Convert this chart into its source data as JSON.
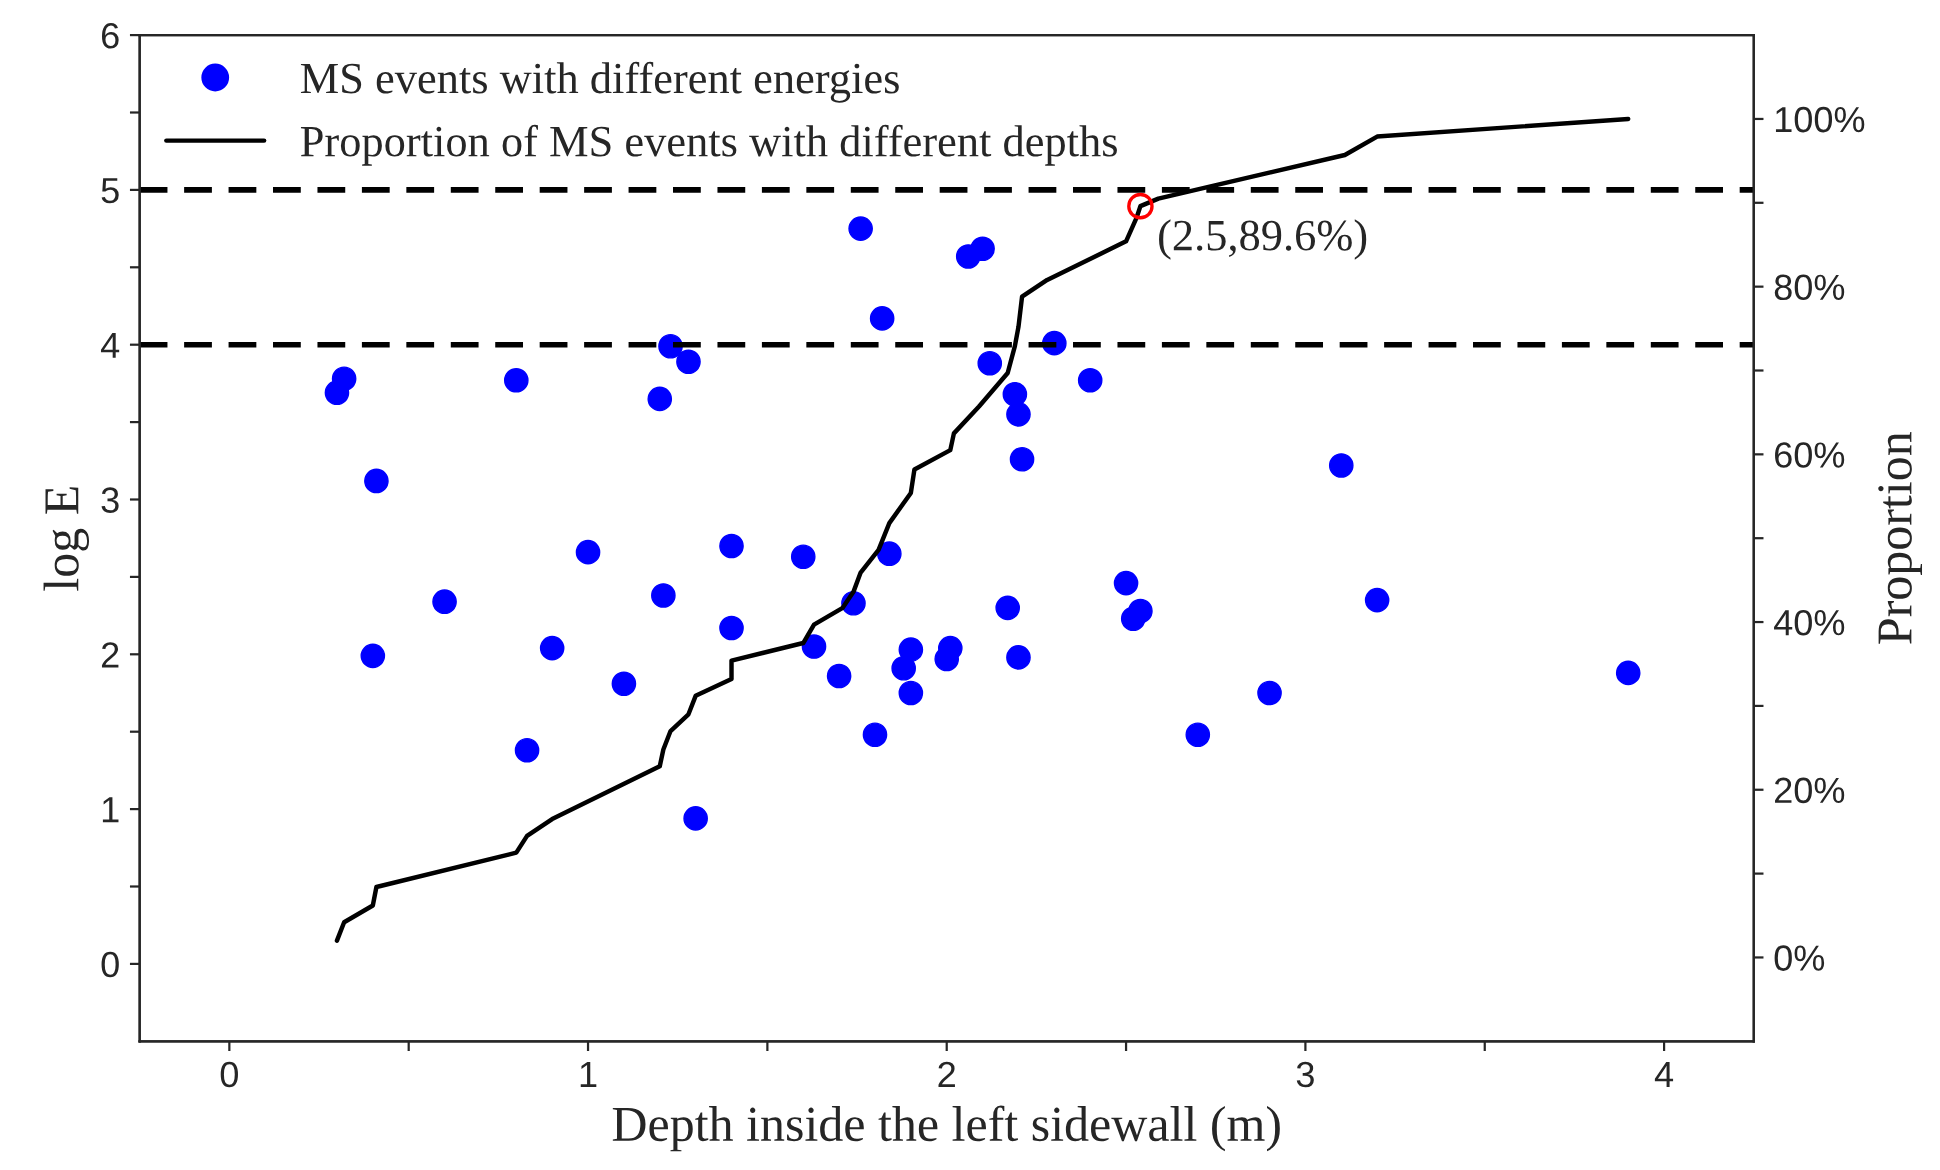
{
  "chart_data": {
    "type": "scatter",
    "xlabel": "Depth inside the left sidewall (m)",
    "ylabel": "log E",
    "y2label": "Proportion",
    "xlim": [
      -0.25,
      4.25
    ],
    "ylim": [
      -0.5,
      6
    ],
    "y2lim": [
      -10,
      110
    ],
    "xticks": [
      0,
      {
        "value": 0.5,
        "label": null
      },
      1,
      {
        "value": 1.5,
        "label": null
      },
      2,
      {
        "value": 2.5,
        "label": null
      },
      3,
      {
        "value": 3.5,
        "label": null
      },
      4
    ],
    "yticks": [
      0,
      {
        "value": 0.5,
        "label": null
      },
      1,
      {
        "value": 1.5,
        "label": null
      },
      2,
      {
        "value": 2.5,
        "label": null
      },
      3,
      {
        "value": 3.5,
        "label": null
      },
      4,
      {
        "value": 4.5,
        "label": null
      },
      5,
      {
        "value": 5.5,
        "label": null
      },
      6
    ],
    "y2ticks": [
      {
        "value": 0,
        "label": "0%"
      },
      {
        "value": 10,
        "label": null
      },
      {
        "value": 20,
        "label": "20%"
      },
      {
        "value": 30,
        "label": null
      },
      {
        "value": 40,
        "label": "40%"
      },
      {
        "value": 50,
        "label": null
      },
      {
        "value": 60,
        "label": "60%"
      },
      {
        "value": 70,
        "label": null
      },
      {
        "value": 80,
        "label": "80%"
      },
      {
        "value": 90,
        "label": null
      },
      {
        "value": 100,
        "label": "100%"
      }
    ],
    "legend": "top left",
    "grid": false,
    "marker": "circle",
    "series": [
      {
        "name": "MS events with different energies",
        "color": "#0000ff",
        "x": [
          1.76,
          2.06,
          2.1,
          1.82,
          1.23,
          1.28,
          2.12,
          0.32,
          0.3,
          0.8,
          1.2,
          2.19,
          2.2,
          0.41,
          2.21,
          1.0,
          1.4,
          1.6,
          1.84,
          2.3,
          2.4,
          3.1,
          2.5,
          0.6,
          1.21,
          1.74,
          2.17,
          1.4,
          0.4,
          0.9,
          1.63,
          1.9,
          2.01,
          2.0,
          2.2,
          1.88,
          1.1,
          1.7,
          1.9,
          0.83,
          1.8,
          1.3,
          2.52,
          2.54,
          3.2,
          2.9,
          2.7,
          3.9
        ],
        "values": [
          4.75,
          4.57,
          4.62,
          4.17,
          3.99,
          3.89,
          3.88,
          3.78,
          3.69,
          3.77,
          3.65,
          3.68,
          3.55,
          3.12,
          3.26,
          2.66,
          2.7,
          2.63,
          2.65,
          4.01,
          3.77,
          3.22,
          2.46,
          2.34,
          2.38,
          2.33,
          2.3,
          2.17,
          1.99,
          2.04,
          2.05,
          2.03,
          2.04,
          1.97,
          1.98,
          1.91,
          1.81,
          1.86,
          1.75,
          1.38,
          1.48,
          0.94,
          2.23,
          2.28,
          2.35,
          1.75,
          1.48,
          1.88
        ]
      },
      {
        "name": "Proportion of MS events with different depths",
        "type": "line",
        "axis": "y2",
        "color": "#000000",
        "line_style": "solid",
        "marker": "none",
        "x": [
          0.3,
          0.32,
          0.4,
          0.41,
          0.8,
          0.83,
          0.9,
          1.2,
          1.21,
          1.23,
          1.28,
          1.3,
          1.4,
          1.4,
          1.6,
          1.63,
          1.71,
          1.74,
          1.76,
          1.81,
          1.84,
          1.9,
          1.91,
          2.01,
          2.02,
          2.09,
          2.17,
          2.19,
          2.2,
          2.21,
          2.28,
          2.5,
          2.53,
          2.54,
          2.59,
          3.11,
          3.2,
          3.9
        ],
        "values": [
          2.0,
          4.2,
          6.2,
          8.4,
          12.5,
          14.5,
          16.5,
          22.8,
          24.8,
          27.0,
          29.0,
          31.2,
          33.2,
          35.4,
          37.5,
          39.7,
          41.7,
          43.6,
          45.9,
          48.6,
          51.8,
          55.4,
          58.2,
          60.5,
          62.5,
          65.7,
          69.7,
          72.9,
          75.2,
          78.8,
          80.8,
          85.4,
          88.3,
          89.6,
          90.5,
          95.7,
          97.9,
          100
        ]
      },
      {
        "type": "scatter",
        "axis": "y2",
        "color": "#ff0000",
        "marker": "circle",
        "x": [
          2.54
        ],
        "values": [
          89.6
        ]
      }
    ],
    "ref_lines": [
      {
        "axis": "y",
        "value": 5,
        "color": "#000000",
        "line_style": "dashed"
      },
      {
        "axis": "y",
        "value": 4,
        "color": "#000000",
        "line_style": "dashed"
      }
    ],
    "annotations": [
      "(2.5,89.6%)"
    ]
  }
}
